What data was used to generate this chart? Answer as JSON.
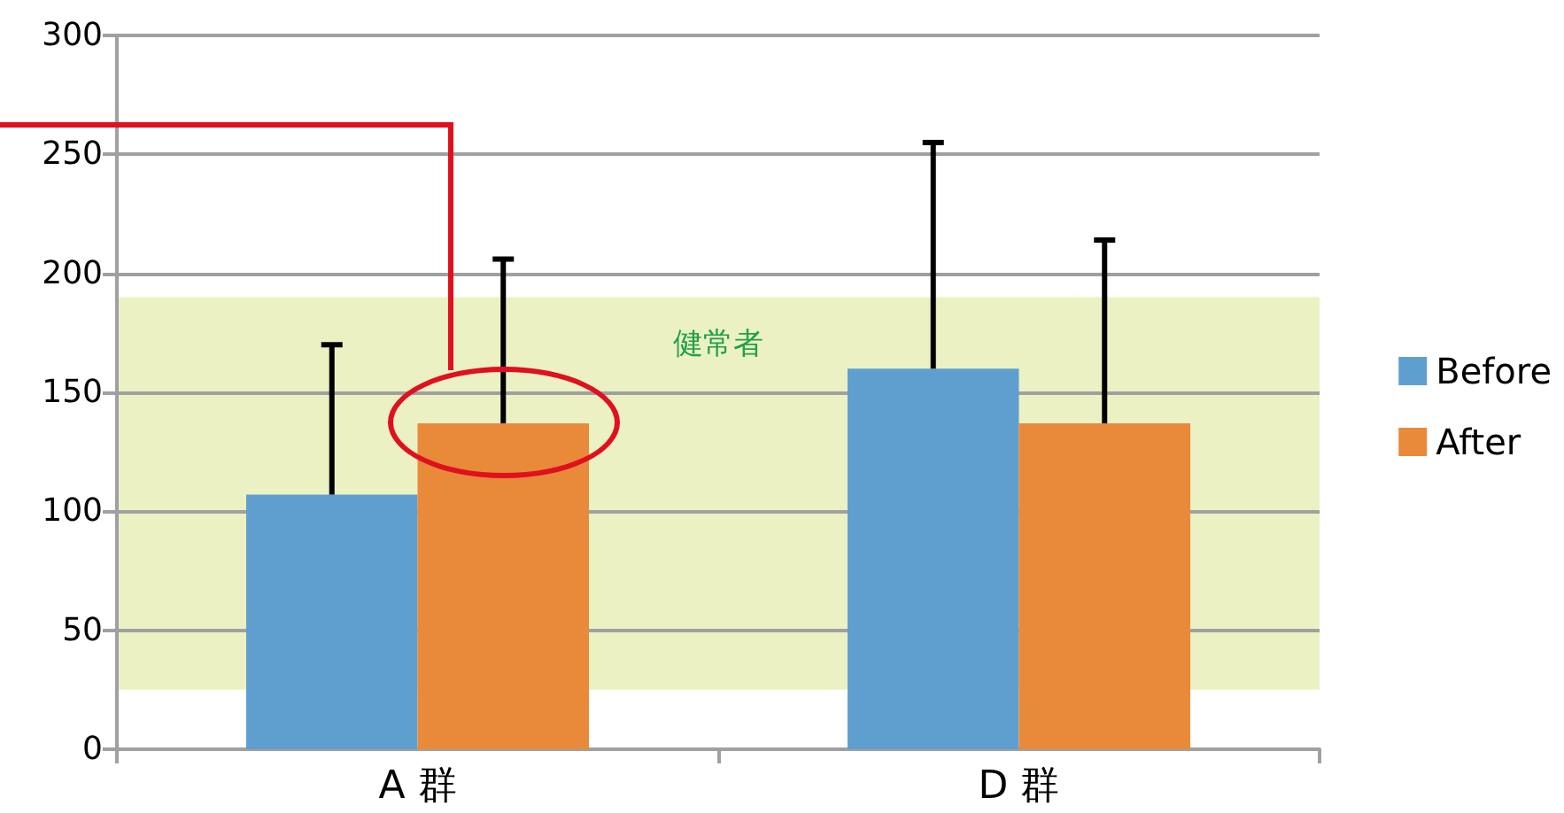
{
  "chart_data": {
    "type": "bar",
    "categories": [
      "A 群",
      "D 群"
    ],
    "series": [
      {
        "name": "Before",
        "color": "#5f9fd0",
        "values": [
          107,
          160
        ],
        "errors": [
          [
            107,
            170
          ],
          [
            160,
            255
          ]
        ]
      },
      {
        "name": "After",
        "color": "#e98a3a",
        "values": [
          137,
          137
        ],
        "errors": [
          [
            137,
            206
          ],
          [
            137,
            214
          ]
        ]
      }
    ],
    "ylim": [
      0,
      300
    ],
    "yticks": [
      0,
      50,
      100,
      150,
      200,
      250,
      300
    ],
    "grid": "y",
    "legend": "right",
    "bands": [
      {
        "axis": "y",
        "from": 25,
        "to": 190,
        "label": "健常者",
        "color": "#ecf1c4"
      }
    ]
  }
}
